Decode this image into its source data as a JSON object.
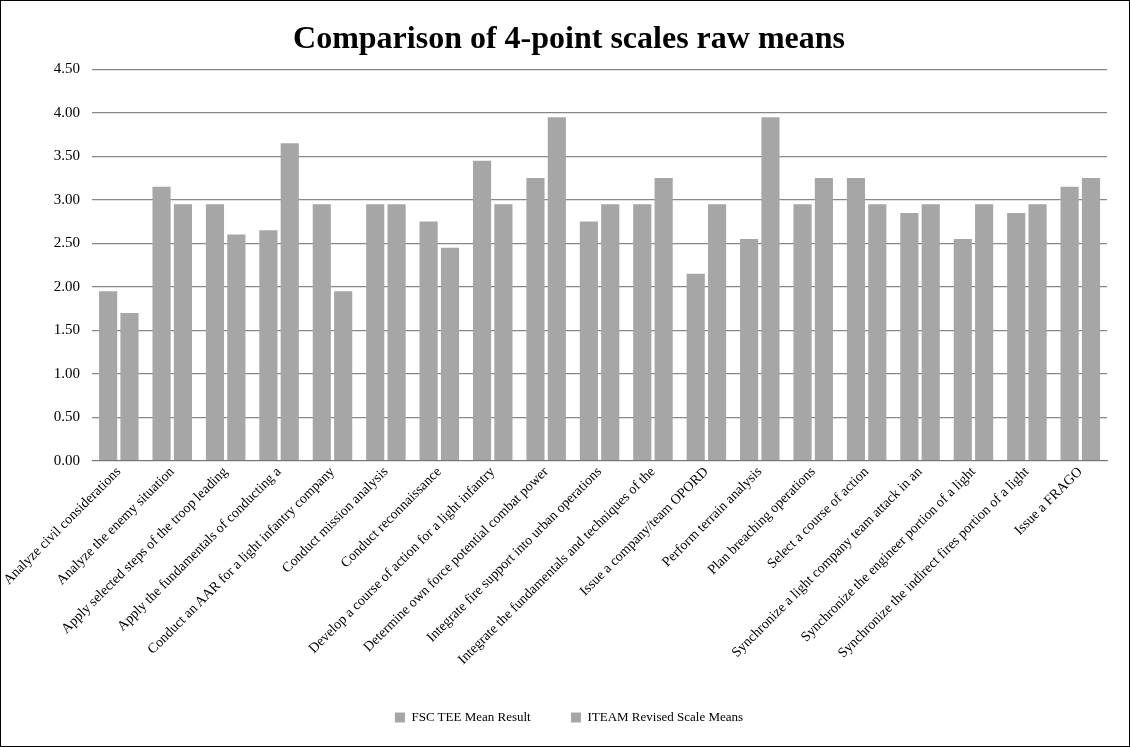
{
  "chart_data": {
    "type": "bar",
    "title": "Comparison of 4-point scales raw means",
    "categories": [
      "Analyze civil considerations",
      "Analyze the enemy situation",
      "Apply selected steps of the troop leading",
      "Apply the fundamentals of conducting a",
      "Conduct an AAR for a light infantry company",
      "Conduct mission analysis",
      "Conduct reconnaissance",
      "Develop a course of action for a light infantry",
      "Determine own force potential combat power",
      "Integrate fire support into urban operations",
      "Integrate the fundamentals and techniques of the",
      "Issue a company/team OPORD",
      "Perform terrain analysis",
      "Plan breaching operations",
      "Select a course of action",
      "Synchronize a light company team attack in an",
      "Synchronize the engineer portion of a light",
      "Synchronize the indirect fires portion of a light",
      "Issue a FRAGO"
    ],
    "series": [
      {
        "name": "FSC TEE Mean Result",
        "color": "#a6a6a6",
        "values": [
          1.95,
          3.15,
          2.95,
          2.65,
          2.95,
          2.95,
          2.75,
          3.45,
          3.25,
          2.75,
          2.95,
          2.15,
          2.55,
          2.95,
          3.25,
          2.85,
          2.55,
          2.85,
          3.15
        ]
      },
      {
        "name": "ITEAM Revised Scale Means",
        "color": "#a6a6a6",
        "values": [
          1.7,
          2.95,
          2.6,
          3.65,
          1.95,
          2.95,
          2.45,
          2.95,
          3.95,
          2.95,
          3.25,
          2.95,
          3.95,
          3.25,
          2.95,
          2.95,
          2.95,
          2.95,
          3.25
        ]
      }
    ],
    "ylim": [
      0,
      4.5
    ],
    "yticks": [
      {
        "value": 0,
        "label": "0.00"
      },
      {
        "value": 0.5,
        "label": "0.50"
      },
      {
        "value": 1,
        "label": "1.00"
      },
      {
        "value": 1.5,
        "label": "1.50"
      },
      {
        "value": 2,
        "label": "2.00"
      },
      {
        "value": 2.5,
        "label": "2.50"
      },
      {
        "value": 3,
        "label": "3.00"
      },
      {
        "value": 3.5,
        "label": "3.50"
      },
      {
        "value": 4,
        "label": "4.00"
      },
      {
        "value": 4.5,
        "label": "4.50"
      }
    ],
    "grid": "y",
    "legend": "bottom"
  }
}
